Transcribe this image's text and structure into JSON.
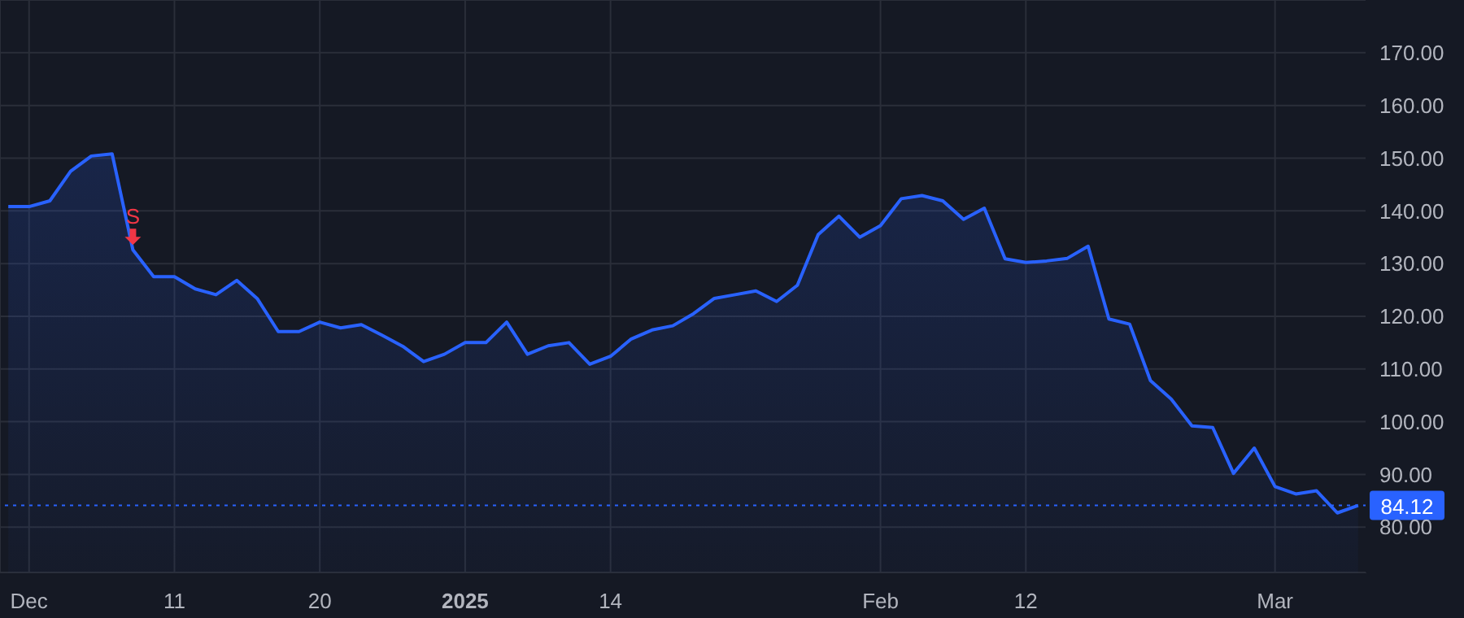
{
  "chart_data": {
    "type": "area",
    "categories": [
      null,
      "Dec",
      null,
      null,
      null,
      null,
      null,
      null,
      "11",
      null,
      null,
      null,
      null,
      null,
      null,
      "20",
      null,
      null,
      null,
      null,
      null,
      null,
      "2025",
      null,
      null,
      null,
      null,
      null,
      null,
      "14",
      null,
      null,
      null,
      null,
      null,
      null,
      null,
      null,
      null,
      null,
      null,
      null,
      "Feb",
      null,
      null,
      null,
      null,
      null,
      null,
      "12",
      null,
      null,
      null,
      null,
      null,
      null,
      null,
      null,
      null,
      null,
      null,
      "Mar",
      null,
      null,
      null,
      null
    ],
    "series": [
      {
        "color": "#2962ff",
        "values": [
          140.8,
          140.8,
          141.9,
          147.5,
          150.4,
          150.8,
          132.6,
          127.5,
          127.5,
          125.2,
          124.1,
          126.8,
          123.3,
          117.1,
          117.1,
          118.9,
          117.8,
          118.4,
          116.4,
          114.3,
          111.4,
          112.8,
          115.0,
          115.0,
          118.9,
          112.8,
          114.4,
          115.0,
          110.9,
          112.4,
          115.7,
          117.4,
          118.2,
          120.5,
          123.4,
          124.1,
          124.8,
          122.8,
          125.9,
          135.5,
          139.0,
          135.0,
          137.2,
          142.3,
          142.9,
          141.9,
          138.4,
          140.5,
          130.9,
          130.2,
          130.5,
          131.0,
          133.3,
          119.5,
          118.5,
          107.8,
          104.3,
          99.2,
          98.9,
          90.2,
          95.0,
          87.7,
          86.3,
          86.9,
          82.7,
          84.12
        ]
      }
    ],
    "ylim": [
      71.4,
      180
    ],
    "yticks": [
      {
        "value": 80,
        "label": "80.00"
      },
      {
        "value": 90,
        "label": "90.00"
      },
      {
        "value": 100,
        "label": "100.00"
      },
      {
        "value": 110,
        "label": "110.00"
      },
      {
        "value": 120,
        "label": "120.00"
      },
      {
        "value": 130,
        "label": "130.00"
      },
      {
        "value": 140,
        "label": "140.00"
      },
      {
        "value": 150,
        "label": "150.00"
      },
      {
        "value": 160,
        "label": "160.00"
      },
      {
        "value": 170,
        "label": "170.00"
      }
    ],
    "grid": true,
    "legend": false,
    "ref_lines": [
      {
        "axis": "y",
        "value": 84.12,
        "label": "84.12",
        "color": "#2962ff",
        "line_style": "dotted"
      }
    ],
    "annotations": [
      {
        "text": "S",
        "y": 132.6
      }
    ]
  }
}
